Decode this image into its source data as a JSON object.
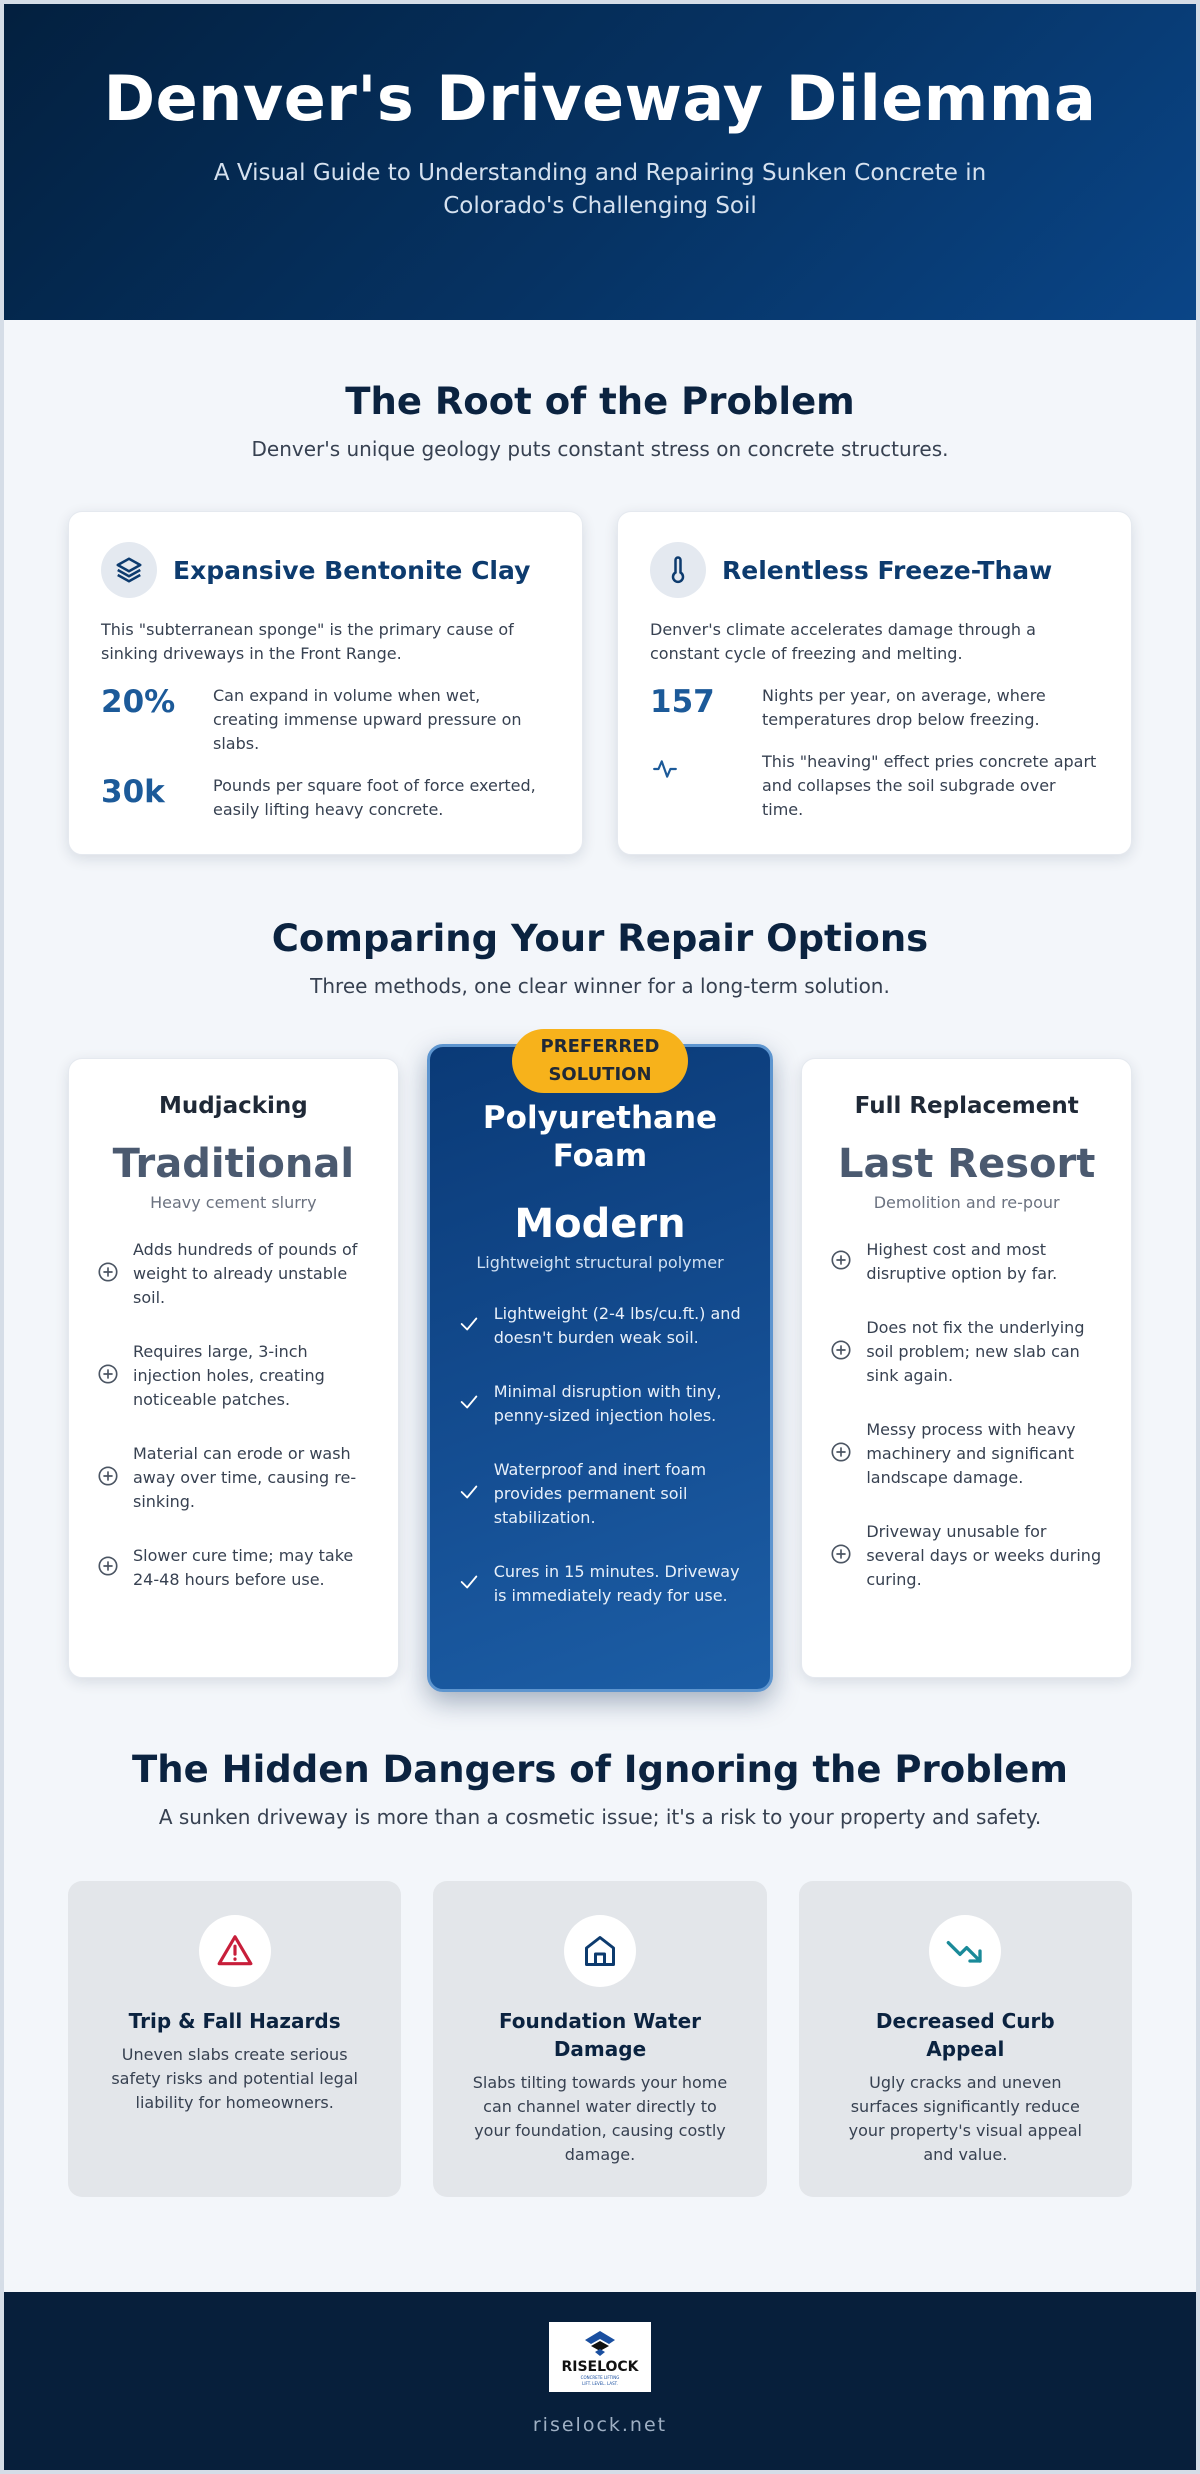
{
  "hero": {
    "title": "Denver's Driveway Dilemma",
    "subtitle": "A Visual Guide to Understanding and Repairing Sunken Concrete in Colorado's Challenging Soil"
  },
  "root": {
    "title": "The Root of the Problem",
    "subtitle": "Denver's unique geology puts constant stress on concrete structures.",
    "cards": [
      {
        "icon": "layers-icon",
        "title": "Expansive Bentonite Clay",
        "desc": "This \"subterranean sponge\" is the primary cause of sinking driveways in the Front Range.",
        "stats": [
          {
            "value": "20%",
            "text": "Can expand in volume when wet, creating immense upward pressure on slabs."
          },
          {
            "value": "30k",
            "text": "Pounds per square foot of force exerted, easily lifting heavy concrete."
          }
        ]
      },
      {
        "icon": "thermometer-icon",
        "title": "Relentless Freeze-Thaw",
        "desc": "Denver's climate accelerates damage through a constant cycle of freezing and melting.",
        "stats": [
          {
            "value": "157",
            "text": "Nights per year, on average, where temperatures drop below freezing."
          },
          {
            "value": "",
            "icon": "activity-icon",
            "text": "This \"heaving\" effect pries concrete apart and collapses the soil subgrade over time."
          }
        ]
      }
    ]
  },
  "compare": {
    "title": "Comparing Your Repair Options",
    "subtitle": "Three methods, one clear winner for a long-term solution.",
    "mudjacking": {
      "name": "Mudjacking",
      "tag": "Traditional",
      "tagsub": "Heavy cement slurry",
      "items": [
        "Adds hundreds of pounds of weight to already unstable soil.",
        "Requires large, 3-inch injection holes, creating noticeable patches.",
        "Material can erode or wash away over time, causing re-sinking.",
        "Slower cure time; may take 24-48 hours before use."
      ]
    },
    "polyurethane": {
      "badge": "PREFERRED SOLUTION",
      "name": "Polyurethane Foam",
      "tag": "Modern",
      "tagsub": "Lightweight structural polymer",
      "items": [
        "Lightweight (2-4 lbs/cu.ft.) and doesn't burden weak soil.",
        "Minimal disruption with tiny, penny-sized injection holes.",
        "Waterproof and inert foam provides permanent soil stabilization.",
        "Cures in 15 minutes. Driveway is immediately ready for use."
      ]
    },
    "replacement": {
      "name": "Full Replacement",
      "tag": "Last Resort",
      "tagsub": "Demolition and re-pour",
      "items": [
        "Highest cost and most disruptive option by far.",
        "Does not fix the underlying soil problem; new slab can sink again.",
        "Messy process with heavy machinery and significant landscape damage.",
        "Driveway unusable for several days or weeks during curing."
      ]
    }
  },
  "dangers": {
    "title": "The Hidden Dangers of Ignoring the Problem",
    "subtitle": "A sunken driveway is more than a cosmetic issue; it's a risk to your property and safety.",
    "cards": [
      {
        "icon": "warning-icon",
        "color": "#c81e3a",
        "title": "Trip & Fall Hazards",
        "desc": "Uneven slabs create serious safety risks and potential legal liability for homeowners."
      },
      {
        "icon": "home-icon",
        "color": "#0d3b6e",
        "title": "Foundation Water Damage",
        "desc": "Slabs tilting towards your home can channel water directly to your foundation, causing costly damage."
      },
      {
        "icon": "trending-down-icon",
        "color": "#1a8a99",
        "title": "Decreased Curb Appeal",
        "desc": "Ugly cracks and uneven surfaces significantly reduce your property's visual appeal and value."
      }
    ]
  },
  "footer": {
    "logo_word": "RISELOCK",
    "logo_sub1": "CONCRETE LIFTING",
    "logo_sub2": "LIFT. LEVEL. LAST.",
    "url": "riselock.net"
  },
  "colors": {
    "accent": "#f7b21b",
    "brand": "#0d3b6e",
    "stat": "#1c5a99"
  }
}
